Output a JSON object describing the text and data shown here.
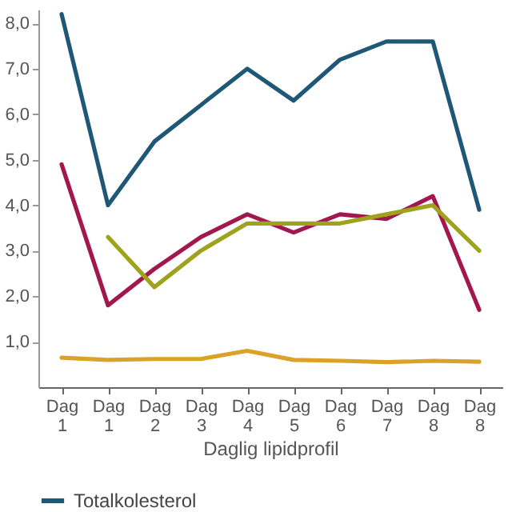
{
  "chart_data": {
    "type": "line",
    "xlabel": "Daglig lipidprofil",
    "categories": [
      "Dag 1",
      "Dag 1",
      "Dag 2",
      "Dag 3",
      "Dag 4",
      "Dag 5",
      "Dag 6",
      "Dag 7",
      "Dag 8",
      "Dag 8"
    ],
    "series": [
      {
        "name": "Totalkolesterol",
        "color": "#1f5876",
        "values": [
          8.2,
          4.0,
          5.4,
          6.2,
          7.0,
          6.3,
          7.2,
          7.6,
          7.6,
          3.9
        ]
      },
      {
        "color": "#a3174f",
        "values": [
          4.9,
          1.8,
          2.6,
          3.3,
          3.8,
          3.4,
          3.8,
          3.7,
          4.2,
          1.7
        ]
      },
      {
        "color": "#9ea21d",
        "values": [
          null,
          3.3,
          2.2,
          3.0,
          3.6,
          3.6,
          3.6,
          3.8,
          4.0,
          3.0
        ]
      },
      {
        "color": "#dba22a",
        "values": [
          0.65,
          0.6,
          0.62,
          0.62,
          0.8,
          0.6,
          0.58,
          0.55,
          0.58,
          0.56
        ]
      }
    ],
    "ylim": [
      0,
      8.3
    ],
    "yticks": [
      {
        "value": 1,
        "label": "1,0"
      },
      {
        "value": 2,
        "label": "2,0"
      },
      {
        "value": 3,
        "label": "3,0"
      },
      {
        "value": 4,
        "label": "4,0"
      },
      {
        "value": 5,
        "label": "5,0"
      },
      {
        "value": 6,
        "label": "6,0"
      },
      {
        "value": 7,
        "label": "7,0"
      },
      {
        "value": 8,
        "label": "8,0"
      }
    ],
    "grid": false,
    "legend": "bottom",
    "marker": "none",
    "line_style": "solid"
  }
}
